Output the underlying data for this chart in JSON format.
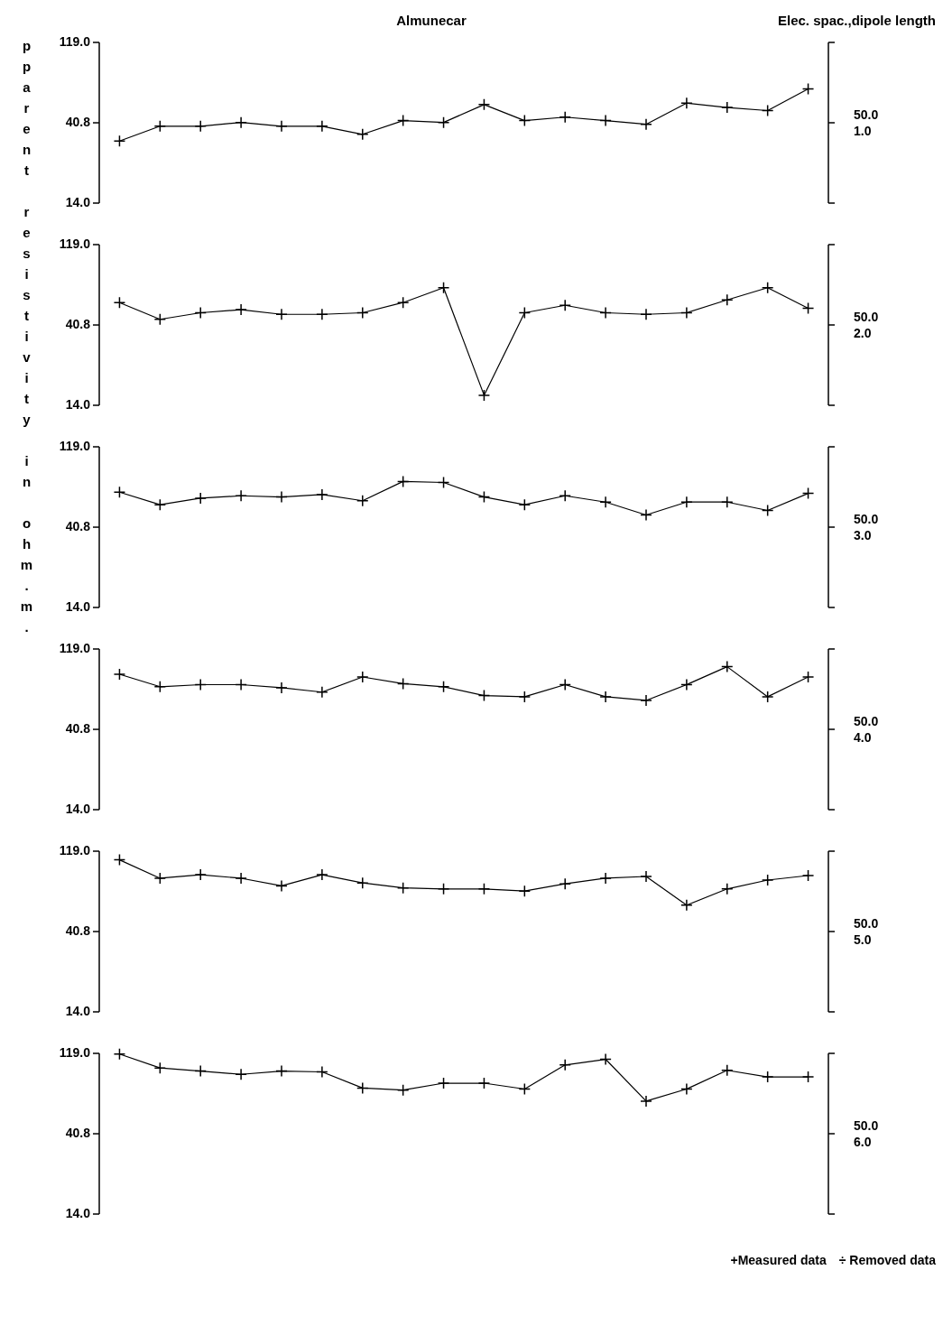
{
  "chart_data": [
    {
      "type": "line",
      "title": "Almunecar",
      "ylabel": "pparent resistivity in ohm.m.",
      "annotations": [
        "Elec. spac.,dipole length",
        "+Measured data",
        "÷ Removed data"
      ],
      "log": true,
      "marker": "cross",
      "line_style": "solid",
      "categories": [
        null,
        null,
        null,
        null,
        null,
        null,
        null,
        null,
        null,
        null,
        null,
        null,
        null,
        null,
        null,
        null,
        null,
        null
      ],
      "ylim": [
        14,
        119
      ],
      "yticks": [
        {
          "value": 14,
          "label": "14.0"
        },
        {
          "value": 40.8,
          "label": "40.8"
        },
        {
          "value": 119,
          "label": "119.0"
        }
      ],
      "series": [
        {
          "name": "50.0 1.0",
          "color": "#000000",
          "values": [
            32,
            39,
            39,
            41,
            39,
            39,
            35,
            42,
            41,
            52,
            42,
            44,
            42,
            40,
            53,
            50,
            48,
            64
          ]
        }
      ]
    },
    {
      "type": "line",
      "log": true,
      "marker": "cross",
      "line_style": "solid",
      "categories": [
        null,
        null,
        null,
        null,
        null,
        null,
        null,
        null,
        null,
        null,
        null,
        null,
        null,
        null,
        null,
        null,
        null,
        null
      ],
      "ylim": [
        14,
        119
      ],
      "yticks": [
        {
          "value": 14,
          "label": "14.0"
        },
        {
          "value": 40.8,
          "label": "40.8"
        },
        {
          "value": 119,
          "label": "119.0"
        }
      ],
      "series": [
        {
          "name": "50.0 2.0",
          "color": "#000000",
          "values": [
            55,
            44,
            48,
            50,
            47,
            47,
            48,
            55,
            67,
            16,
            48,
            53,
            48,
            47,
            48,
            57,
            67,
            51
          ]
        }
      ]
    },
    {
      "type": "line",
      "log": true,
      "marker": "cross",
      "line_style": "solid",
      "categories": [
        null,
        null,
        null,
        null,
        null,
        null,
        null,
        null,
        null,
        null,
        null,
        null,
        null,
        null,
        null,
        null,
        null,
        null
      ],
      "ylim": [
        14,
        119
      ],
      "yticks": [
        {
          "value": 14,
          "label": "14.0"
        },
        {
          "value": 40.8,
          "label": "40.8"
        },
        {
          "value": 119,
          "label": "119.0"
        }
      ],
      "series": [
        {
          "name": "50.0 3.0",
          "color": "#000000",
          "values": [
            65,
            55,
            60,
            62,
            61,
            63,
            58,
            75,
            74,
            61,
            55,
            62,
            57,
            48,
            57,
            57,
            51,
            64
          ]
        }
      ]
    },
    {
      "type": "line",
      "log": true,
      "marker": "cross",
      "line_style": "solid",
      "categories": [
        null,
        null,
        null,
        null,
        null,
        null,
        null,
        null,
        null,
        null,
        null,
        null,
        null,
        null,
        null,
        null,
        null,
        null
      ],
      "ylim": [
        14,
        119
      ],
      "yticks": [
        {
          "value": 14,
          "label": "14.0"
        },
        {
          "value": 40.8,
          "label": "40.8"
        },
        {
          "value": 119,
          "label": "119.0"
        }
      ],
      "series": [
        {
          "name": "50.0 4.0",
          "color": "#000000",
          "values": [
            85,
            72,
            74,
            74,
            71,
            67,
            82,
            75,
            72,
            64,
            63,
            74,
            63,
            60,
            74,
            94,
            63,
            82
          ]
        }
      ]
    },
    {
      "type": "line",
      "log": true,
      "marker": "cross",
      "line_style": "solid",
      "categories": [
        null,
        null,
        null,
        null,
        null,
        null,
        null,
        null,
        null,
        null,
        null,
        null,
        null,
        null,
        null,
        null,
        null,
        null
      ],
      "ylim": [
        14,
        119
      ],
      "yticks": [
        {
          "value": 14,
          "label": "14.0"
        },
        {
          "value": 40.8,
          "label": "40.8"
        },
        {
          "value": 119,
          "label": "119.0"
        }
      ],
      "series": [
        {
          "name": "50.0 5.0",
          "color": "#000000",
          "values": [
            106,
            83,
            87,
            83,
            75,
            87,
            78,
            73,
            72,
            72,
            70,
            77,
            83,
            85,
            58,
            72,
            81,
            86
          ]
        }
      ]
    },
    {
      "type": "line",
      "log": true,
      "marker": "cross",
      "line_style": "solid",
      "categories": [
        null,
        null,
        null,
        null,
        null,
        null,
        null,
        null,
        null,
        null,
        null,
        null,
        null,
        null,
        null,
        null,
        null,
        null
      ],
      "ylim": [
        14,
        119
      ],
      "yticks": [
        {
          "value": 14,
          "label": "14.0"
        },
        {
          "value": 40.8,
          "label": "40.8"
        },
        {
          "value": 119,
          "label": "119.0"
        }
      ],
      "series": [
        {
          "name": "50.0 6.0",
          "color": "#000000",
          "values": [
            118,
            98,
            94,
            90,
            94,
            93,
            75,
            73,
            80,
            80,
            74,
            102,
            110,
            63,
            74,
            95,
            87,
            87
          ]
        }
      ]
    }
  ]
}
